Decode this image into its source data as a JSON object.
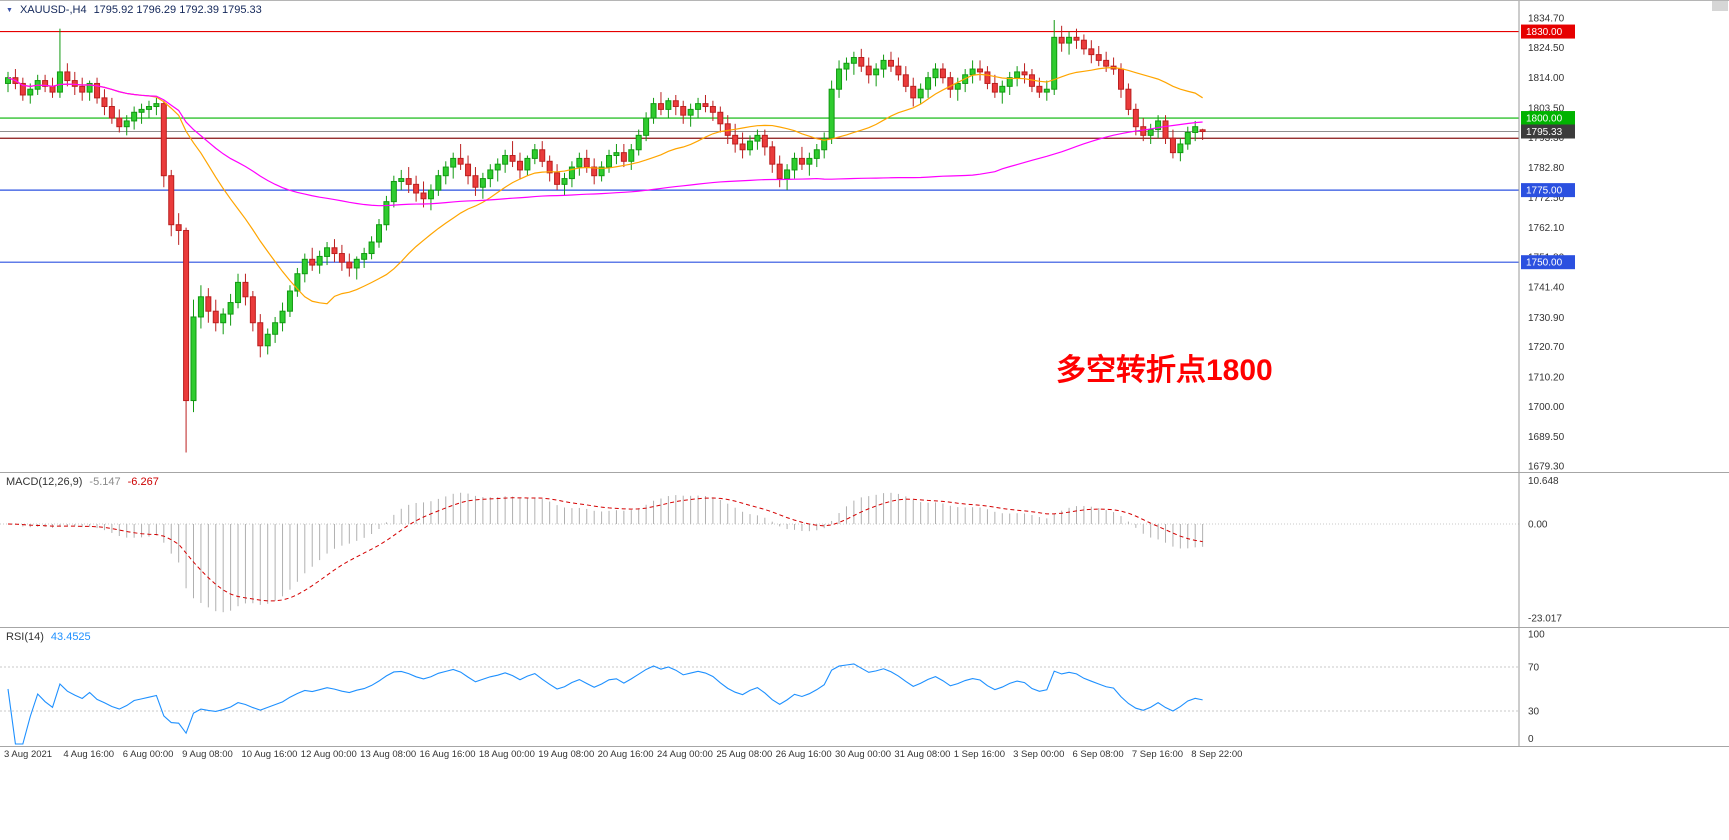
{
  "header": {
    "symbol_period": "XAUUSD-,H4",
    "ohlc": "1795.92 1796.29 1792.39 1795.33"
  },
  "annotation": {
    "text": "多空转折点1800",
    "color": "#ff0000"
  },
  "indicators": {
    "macd": {
      "name": "MACD(12,26,9)",
      "main_value": "-5.147",
      "signal_value": "-6.267",
      "fast": 12,
      "slow": 26,
      "signal": 9,
      "axis_ticks": [
        "10.648",
        "0.00",
        "-23.017"
      ],
      "histogram_color": "#b0b0b0",
      "signal_color": "#d40000"
    },
    "rsi": {
      "name": "RSI(14)",
      "value": "43.4525",
      "period": 14,
      "axis_ticks": [
        "100",
        "70",
        "30",
        "0"
      ],
      "levels": [
        70,
        30
      ],
      "line_color": "#1e90ff"
    }
  },
  "colors": {
    "up_fill": "#2fcc2f",
    "up_border": "#119911",
    "down_fill": "#ea3b3b",
    "down_border": "#bb1f1f",
    "axis_text": "#333333",
    "separator": "#a6a6a6"
  },
  "chart_data": {
    "type": "candlestick",
    "title": "XAUUSD- H4 candlestick chart with MACD and RSI",
    "symbol": "XAUUSD-",
    "timeframe": "H4",
    "price_axis_ticks": [
      "1834.70",
      "1824.50",
      "1814.00",
      "1803.50",
      "1793.30",
      "1782.80",
      "1772.50",
      "1762.10",
      "1751.80",
      "1741.40",
      "1730.90",
      "1720.70",
      "1710.20",
      "1700.00",
      "1689.50",
      "1679.30"
    ],
    "price_range": [
      1679.3,
      1834.7
    ],
    "levels": [
      {
        "price": 1830.0,
        "color": "#e60000",
        "label": "1830.00",
        "badge": true
      },
      {
        "price": 1800.0,
        "color": "#00b300",
        "label": "1800.00",
        "badge": true
      },
      {
        "price": 1793.0,
        "color": "#8a1616",
        "label": "",
        "badge": false
      },
      {
        "price": 1775.0,
        "color": "#2b50e0",
        "label": "1775.00",
        "badge": true
      },
      {
        "price": 1750.0,
        "color": "#2b50e0",
        "label": "1750.00",
        "badge": true
      }
    ],
    "bid": {
      "price": 1795.33,
      "label": "1795.33",
      "line_color": "#909090",
      "badge_color": "#3c3c3c"
    },
    "moving_averages": [
      {
        "name": "ma-fast-orange",
        "period": 20,
        "color": "#ffa500"
      },
      {
        "name": "ma-slow-magenta",
        "period": 110,
        "color": "#ff00ff"
      }
    ],
    "time_labels": [
      "3 Aug 2021",
      "4 Aug 16:00",
      "6 Aug 00:00",
      "9 Aug 08:00",
      "10 Aug 16:00",
      "12 Aug 00:00",
      "13 Aug 08:00",
      "16 Aug 16:00",
      "18 Aug 00:00",
      "19 Aug 08:00",
      "20 Aug 16:00",
      "24 Aug 00:00",
      "25 Aug 08:00",
      "26 Aug 16:00",
      "30 Aug 00:00",
      "31 Aug 08:00",
      "1 Sep 16:00",
      "3 Sep 00:00",
      "6 Sep 08:00",
      "7 Sep 16:00",
      "8 Sep 22:00"
    ],
    "label_every_n_candles": 8,
    "candles": [
      [
        1812,
        1816,
        1809,
        1814
      ],
      [
        1814,
        1817,
        1810,
        1812
      ],
      [
        1812,
        1814,
        1806,
        1808
      ],
      [
        1808,
        1812,
        1805,
        1810
      ],
      [
        1810,
        1815,
        1808,
        1813
      ],
      [
        1813,
        1815,
        1809,
        1811
      ],
      [
        1811,
        1814,
        1807,
        1809
      ],
      [
        1809,
        1831,
        1807,
        1816
      ],
      [
        1816,
        1819,
        1811,
        1813
      ],
      [
        1813,
        1816,
        1808,
        1811
      ],
      [
        1811,
        1814,
        1806,
        1809
      ],
      [
        1809,
        1813,
        1806,
        1812
      ],
      [
        1812,
        1814,
        1805,
        1807
      ],
      [
        1807,
        1810,
        1801,
        1804
      ],
      [
        1804,
        1807,
        1798,
        1800
      ],
      [
        1800,
        1803,
        1795,
        1797
      ],
      [
        1797,
        1801,
        1794,
        1799
      ],
      [
        1799,
        1804,
        1796,
        1802
      ],
      [
        1802,
        1805,
        1798,
        1803
      ],
      [
        1803,
        1806,
        1800,
        1804
      ],
      [
        1804,
        1807,
        1801,
        1805
      ],
      [
        1805,
        1806,
        1776,
        1780
      ],
      [
        1780,
        1782,
        1759,
        1763
      ],
      [
        1763,
        1767,
        1756,
        1761
      ],
      [
        1761,
        1762,
        1684,
        1702
      ],
      [
        1702,
        1737,
        1698,
        1731
      ],
      [
        1731,
        1742,
        1727,
        1738
      ],
      [
        1738,
        1741,
        1729,
        1733
      ],
      [
        1733,
        1737,
        1726,
        1729
      ],
      [
        1729,
        1734,
        1725,
        1732
      ],
      [
        1732,
        1739,
        1728,
        1736
      ],
      [
        1736,
        1746,
        1734,
        1743
      ],
      [
        1743,
        1746,
        1735,
        1738
      ],
      [
        1738,
        1740,
        1726,
        1729
      ],
      [
        1729,
        1732,
        1717,
        1721
      ],
      [
        1721,
        1727,
        1718,
        1725
      ],
      [
        1725,
        1731,
        1722,
        1729
      ],
      [
        1729,
        1736,
        1726,
        1733
      ],
      [
        1733,
        1742,
        1731,
        1740
      ],
      [
        1740,
        1748,
        1738,
        1746
      ],
      [
        1746,
        1753,
        1743,
        1751
      ],
      [
        1751,
        1755,
        1747,
        1749
      ],
      [
        1749,
        1754,
        1746,
        1752
      ],
      [
        1752,
        1757,
        1749,
        1755
      ],
      [
        1755,
        1758,
        1750,
        1753
      ],
      [
        1753,
        1756,
        1747,
        1750
      ],
      [
        1750,
        1753,
        1745,
        1748
      ],
      [
        1748,
        1752,
        1744,
        1751
      ],
      [
        1751,
        1755,
        1748,
        1753
      ],
      [
        1753,
        1759,
        1751,
        1757
      ],
      [
        1757,
        1765,
        1755,
        1763
      ],
      [
        1763,
        1773,
        1761,
        1771
      ],
      [
        1771,
        1780,
        1769,
        1778
      ],
      [
        1778,
        1782,
        1775,
        1779
      ],
      [
        1779,
        1783,
        1774,
        1777
      ],
      [
        1777,
        1780,
        1771,
        1774
      ],
      [
        1774,
        1778,
        1769,
        1772
      ],
      [
        1772,
        1777,
        1768,
        1775
      ],
      [
        1775,
        1782,
        1773,
        1780
      ],
      [
        1780,
        1785,
        1777,
        1783
      ],
      [
        1783,
        1788,
        1779,
        1786
      ],
      [
        1786,
        1791,
        1782,
        1784
      ],
      [
        1784,
        1787,
        1777,
        1780
      ],
      [
        1780,
        1783,
        1773,
        1776
      ],
      [
        1776,
        1781,
        1772,
        1779
      ],
      [
        1779,
        1784,
        1776,
        1782
      ],
      [
        1782,
        1786,
        1778,
        1784
      ],
      [
        1784,
        1789,
        1781,
        1787
      ],
      [
        1787,
        1792,
        1783,
        1785
      ],
      [
        1785,
        1788,
        1779,
        1782
      ],
      [
        1782,
        1787,
        1780,
        1786
      ],
      [
        1786,
        1791,
        1784,
        1789
      ],
      [
        1789,
        1792,
        1783,
        1785
      ],
      [
        1785,
        1787,
        1778,
        1781
      ],
      [
        1781,
        1784,
        1775,
        1777
      ],
      [
        1777,
        1781,
        1773,
        1779
      ],
      [
        1779,
        1785,
        1776,
        1783
      ],
      [
        1783,
        1788,
        1780,
        1786
      ],
      [
        1786,
        1789,
        1781,
        1783
      ],
      [
        1783,
        1786,
        1777,
        1780
      ],
      [
        1780,
        1785,
        1778,
        1783
      ],
      [
        1783,
        1789,
        1781,
        1787
      ],
      [
        1787,
        1791,
        1784,
        1788
      ],
      [
        1788,
        1791,
        1783,
        1785
      ],
      [
        1785,
        1791,
        1782,
        1789
      ],
      [
        1789,
        1796,
        1787,
        1794
      ],
      [
        1794,
        1802,
        1792,
        1800
      ],
      [
        1800,
        1807,
        1798,
        1805
      ],
      [
        1805,
        1809,
        1801,
        1803
      ],
      [
        1803,
        1807,
        1800,
        1806
      ],
      [
        1806,
        1808,
        1801,
        1804
      ],
      [
        1804,
        1806,
        1798,
        1801
      ],
      [
        1801,
        1805,
        1797,
        1803
      ],
      [
        1803,
        1807,
        1800,
        1805
      ],
      [
        1805,
        1808,
        1802,
        1804
      ],
      [
        1804,
        1806,
        1799,
        1802
      ],
      [
        1802,
        1804,
        1795,
        1798
      ],
      [
        1798,
        1801,
        1791,
        1794
      ],
      [
        1794,
        1798,
        1788,
        1791
      ],
      [
        1791,
        1795,
        1786,
        1789
      ],
      [
        1789,
        1794,
        1787,
        1792
      ],
      [
        1792,
        1796,
        1789,
        1794
      ],
      [
        1794,
        1796,
        1787,
        1790
      ],
      [
        1790,
        1792,
        1781,
        1784
      ],
      [
        1784,
        1787,
        1776,
        1779
      ],
      [
        1779,
        1784,
        1775,
        1782
      ],
      [
        1782,
        1788,
        1779,
        1786
      ],
      [
        1786,
        1790,
        1782,
        1784
      ],
      [
        1784,
        1788,
        1780,
        1786
      ],
      [
        1786,
        1791,
        1783,
        1789
      ],
      [
        1789,
        1795,
        1786,
        1793
      ],
      [
        1793,
        1813,
        1791,
        1810
      ],
      [
        1810,
        1820,
        1807,
        1817
      ],
      [
        1817,
        1821,
        1813,
        1819
      ],
      [
        1819,
        1823,
        1815,
        1821
      ],
      [
        1821,
        1824,
        1816,
        1818
      ],
      [
        1818,
        1821,
        1812,
        1815
      ],
      [
        1815,
        1819,
        1811,
        1817
      ],
      [
        1817,
        1822,
        1814,
        1820
      ],
      [
        1820,
        1823,
        1816,
        1818
      ],
      [
        1818,
        1821,
        1813,
        1815
      ],
      [
        1815,
        1818,
        1809,
        1811
      ],
      [
        1811,
        1814,
        1804,
        1807
      ],
      [
        1807,
        1812,
        1805,
        1810
      ],
      [
        1810,
        1816,
        1807,
        1814
      ],
      [
        1814,
        1819,
        1811,
        1817
      ],
      [
        1817,
        1819,
        1812,
        1814
      ],
      [
        1814,
        1816,
        1807,
        1810
      ],
      [
        1810,
        1814,
        1806,
        1812
      ],
      [
        1812,
        1817,
        1809,
        1815
      ],
      [
        1815,
        1820,
        1812,
        1817
      ],
      [
        1817,
        1820,
        1813,
        1816
      ],
      [
        1816,
        1818,
        1810,
        1812
      ],
      [
        1812,
        1815,
        1807,
        1809
      ],
      [
        1809,
        1813,
        1805,
        1811
      ],
      [
        1811,
        1816,
        1808,
        1814
      ],
      [
        1814,
        1818,
        1811,
        1816
      ],
      [
        1816,
        1819,
        1812,
        1815
      ],
      [
        1815,
        1817,
        1809,
        1811
      ],
      [
        1811,
        1814,
        1807,
        1809
      ],
      [
        1809,
        1813,
        1806,
        1810
      ],
      [
        1810,
        1834,
        1808,
        1828
      ],
      [
        1828,
        1832,
        1823,
        1826
      ],
      [
        1826,
        1830,
        1822,
        1828
      ],
      [
        1828,
        1831,
        1824,
        1827
      ],
      [
        1827,
        1829,
        1822,
        1824
      ],
      [
        1824,
        1827,
        1819,
        1822
      ],
      [
        1822,
        1825,
        1818,
        1820
      ],
      [
        1820,
        1823,
        1816,
        1818
      ],
      [
        1818,
        1821,
        1815,
        1817
      ],
      [
        1817,
        1819,
        1807,
        1810
      ],
      [
        1810,
        1812,
        1801,
        1803
      ],
      [
        1803,
        1805,
        1794,
        1797
      ],
      [
        1797,
        1800,
        1792,
        1794
      ],
      [
        1794,
        1798,
        1791,
        1796
      ],
      [
        1796,
        1801,
        1793,
        1799
      ],
      [
        1799,
        1801,
        1791,
        1793
      ],
      [
        1793,
        1796,
        1786,
        1788
      ],
      [
        1788,
        1793,
        1785,
        1791
      ],
      [
        1791,
        1797,
        1789,
        1795
      ],
      [
        1795,
        1799,
        1792,
        1797
      ],
      [
        1795.92,
        1796.29,
        1792.39,
        1795.33
      ]
    ]
  }
}
